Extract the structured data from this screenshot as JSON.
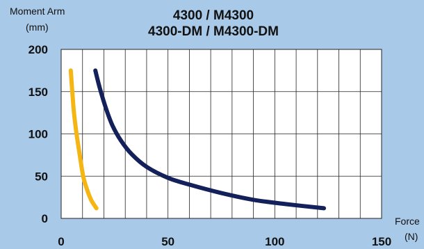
{
  "chart_data": {
    "type": "line",
    "title": [
      "4300 / M4300",
      "4300-DM / M4300-DM"
    ],
    "ylabel": [
      "Moment Arm",
      "(mm)"
    ],
    "xlabel": [
      "Force",
      "(N)"
    ],
    "xlim": [
      0,
      150
    ],
    "ylim": [
      0,
      200
    ],
    "x_ticks": [
      0,
      50,
      100,
      150
    ],
    "y_ticks": [
      0,
      50,
      100,
      150,
      200
    ],
    "grid": true,
    "x_grid_step": 10,
    "y_grid_step": 50,
    "series": [
      {
        "color": "#f5b614",
        "x": [
          4.5,
          5.2,
          6.0,
          7.2,
          8.7,
          10.3,
          12.0,
          14.0,
          16.5
        ],
        "y": [
          175,
          150,
          125,
          100,
          75,
          50,
          35,
          22,
          12
        ]
      },
      {
        "color": "#13205a",
        "x": [
          16,
          18,
          21,
          24,
          28,
          33,
          40,
          50,
          60,
          75,
          90,
          105,
          123
        ],
        "y": [
          175,
          155,
          130,
          110,
          92,
          76,
          61,
          48,
          40,
          30,
          22,
          17,
          12
        ]
      }
    ]
  }
}
